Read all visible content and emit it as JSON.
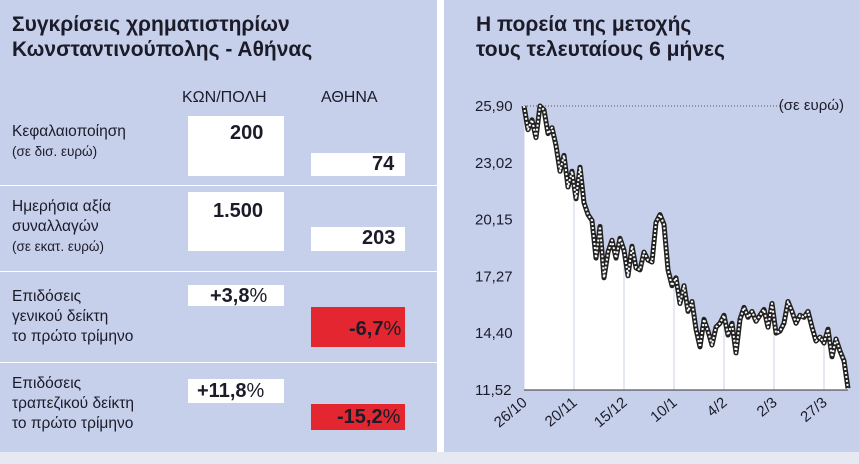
{
  "left": {
    "title_line1": "Συγκρίσεις χρηματιστηρίων",
    "title_line2": "Κωνσταντινούπολης - Αθήνας",
    "col_istanbul": "ΚΩΝ/ΠΟΛΗ",
    "col_athens": "ΑΘΗΝΑ",
    "rows": [
      {
        "label_lines": [
          "Κεφαλαιοποίηση"
        ],
        "sub": "(σε δισ. ευρώ)",
        "istanbul": "200",
        "athens": "74"
      },
      {
        "label_lines": [
          "Ημερήσια αξία",
          "συναλλαγών"
        ],
        "sub": "(σε εκατ. ευρώ)",
        "istanbul": "1.500",
        "athens": "203"
      },
      {
        "label_lines": [
          "Επιδόσεις",
          "γενικού δείκτη",
          "το πρώτο τρίμηνο"
        ],
        "istanbul": "+3,8",
        "athens": "-6,7",
        "unit": "%"
      },
      {
        "label_lines": [
          "Επιδόσεις",
          "τραπεζικού δείκτη",
          "το πρώτο τρίμηνο"
        ],
        "istanbul": "+11,8",
        "athens": "-15,2",
        "unit": "%"
      }
    ]
  },
  "right": {
    "title_line1": "Η πορεία της μετοχής",
    "title_line2": "τους τελευταίους 6 μήνες"
  },
  "colors": {
    "panel": "#c7d0ea",
    "negative": "#e3262f",
    "bar": "#ffffff",
    "line": "#222222"
  },
  "chart_data": [
    {
      "type": "bar",
      "title": "Συγκρίσεις χρηματιστηρίων Κωνσταντινούπολης - Αθήνας",
      "categories": [
        "Κεφαλαιοποίηση (σε δισ. ευρώ)",
        "Ημερήσια αξία συναλλαγών (σε εκατ. ευρώ)",
        "Επιδόσεις γενικού δείκτη το πρώτο τρίμηνο",
        "Επιδόσεις τραπεζικού δείκτη το πρώτο τρίμηνο"
      ],
      "series": [
        {
          "name": "ΚΩΝ/ΠΟΛΗ",
          "values": [
            200,
            1500,
            3.8,
            11.8
          ]
        },
        {
          "name": "ΑΘΗΝΑ",
          "values": [
            74,
            203,
            -6.7,
            -15.2
          ]
        }
      ]
    },
    {
      "type": "line",
      "title": "Η πορεία της μετοχής τους τελευταίους 6 μήνες",
      "unit_label": "(σε ευρώ)",
      "xlabel": "",
      "ylabel": "",
      "ylim": [
        11.52,
        25.9
      ],
      "yticks": [
        "25,90",
        "23,02",
        "20,15",
        "17,27",
        "14,40",
        "11,52"
      ],
      "ytick_values": [
        25.9,
        23.02,
        20.15,
        17.27,
        14.4,
        11.52
      ],
      "xticks": [
        "26/10",
        "20/11",
        "15/12",
        "10/1",
        "4/2",
        "2/3",
        "27/3"
      ],
      "xtick_positions": [
        0,
        25,
        50,
        75,
        100,
        125,
        150
      ],
      "grid": "vertical",
      "x": [
        0,
        2,
        4,
        6,
        8,
        10,
        12,
        14,
        16,
        18,
        20,
        22,
        24,
        26,
        28,
        30,
        32,
        34,
        36,
        38,
        40,
        42,
        44,
        46,
        48,
        50,
        52,
        54,
        56,
        58,
        60,
        62,
        64,
        66,
        68,
        70,
        72,
        74,
        76,
        78,
        80,
        82,
        84,
        86,
        88,
        90,
        92,
        94,
        96,
        98,
        100,
        102,
        104,
        106,
        108,
        110,
        112,
        114,
        116,
        118,
        120,
        122,
        124,
        126,
        128,
        130,
        132,
        134,
        136,
        138,
        140,
        142,
        144,
        146,
        148,
        150,
        152,
        154,
        156,
        158,
        160,
        162
      ],
      "values": [
        25.9,
        24.7,
        25.2,
        24.3,
        25.9,
        25.7,
        24.5,
        24.8,
        23.9,
        22.6,
        23.4,
        21.8,
        22.6,
        21.2,
        22.8,
        21.0,
        20.4,
        20.1,
        18.2,
        19.8,
        17.2,
        18.5,
        19.1,
        18.2,
        19.2,
        18.6,
        17.3,
        18.8,
        17.7,
        17.6,
        18.5,
        18.1,
        18.0,
        20.0,
        20.4,
        19.9,
        17.6,
        16.8,
        17.2,
        15.9,
        16.8,
        15.5,
        16.0,
        14.6,
        13.7,
        15.1,
        14.5,
        13.8,
        14.7,
        14.9,
        15.3,
        14.3,
        14.9,
        13.4,
        15.1,
        15.7,
        15.2,
        15.5,
        15.0,
        15.3,
        15.6,
        14.7,
        15.9,
        14.4,
        14.5,
        14.9,
        16.0,
        15.5,
        14.9,
        15.3,
        15.2,
        15.5,
        14.7,
        14.0,
        14.2,
        13.9,
        14.6,
        13.2,
        14.1,
        13.5,
        13.0,
        11.6
      ]
    }
  ]
}
